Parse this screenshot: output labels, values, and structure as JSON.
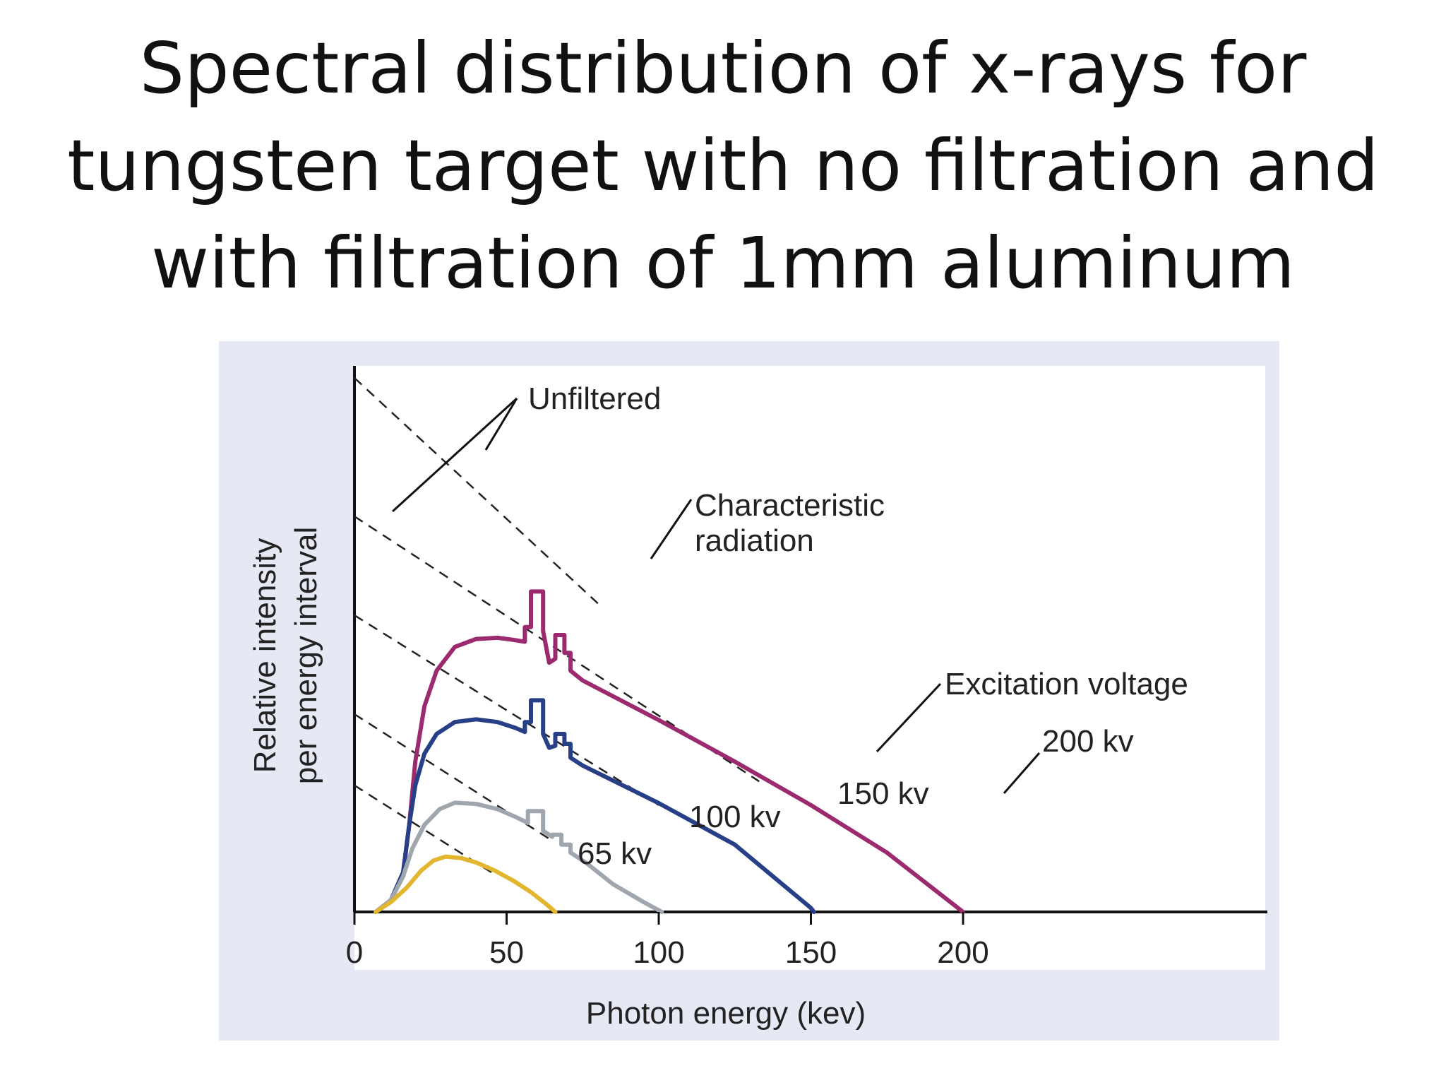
{
  "title_lines": [
    "Spectral distribution of x-rays for",
    "tungsten target with no filtration and",
    "with filtration of 1mm aluminum"
  ],
  "chart_data": {
    "type": "line",
    "title": "",
    "xlabel": "Photon energy (kev)",
    "ylabel_lines": [
      "Relative intensity",
      "per energy interval"
    ],
    "xlim": [
      0,
      225
    ],
    "ylim": [
      0,
      100
    ],
    "x_ticks": [
      0,
      50,
      100,
      150,
      200
    ],
    "grid": false,
    "legend": "none",
    "series": [
      {
        "name": "200 kv",
        "color": "#9b2a6e",
        "points": [
          [
            7,
            0
          ],
          [
            12,
            3
          ],
          [
            16,
            10
          ],
          [
            18,
            22
          ],
          [
            20,
            38
          ],
          [
            23,
            52
          ],
          [
            27,
            61
          ],
          [
            33,
            67
          ],
          [
            40,
            69
          ],
          [
            47,
            69.3
          ],
          [
            52,
            68.8
          ],
          [
            56,
            68.3
          ],
          [
            56,
            72
          ],
          [
            58,
            72
          ],
          [
            58,
            81
          ],
          [
            62,
            81
          ],
          [
            62,
            71
          ],
          [
            64,
            63
          ],
          [
            66,
            64
          ],
          [
            66,
            70
          ],
          [
            69,
            70
          ],
          [
            69,
            65.5
          ],
          [
            71,
            65.5
          ],
          [
            71,
            61
          ],
          [
            75,
            58.5
          ],
          [
            100,
            48.5
          ],
          [
            125,
            38
          ],
          [
            150,
            27
          ],
          [
            175,
            15
          ],
          [
            200,
            0
          ]
        ]
      },
      {
        "name": "150 kv",
        "color": "#263f86",
        "points": [
          [
            7,
            0
          ],
          [
            12,
            3
          ],
          [
            16,
            10
          ],
          [
            18,
            22
          ],
          [
            20,
            32
          ],
          [
            23,
            40
          ],
          [
            27,
            45
          ],
          [
            33,
            48
          ],
          [
            40,
            48.7
          ],
          [
            47,
            48
          ],
          [
            53,
            46.5
          ],
          [
            56,
            45.5
          ],
          [
            56,
            48
          ],
          [
            58,
            48
          ],
          [
            58,
            53.5
          ],
          [
            62,
            53.5
          ],
          [
            62,
            45
          ],
          [
            64,
            41.5
          ],
          [
            66,
            42
          ],
          [
            66,
            45
          ],
          [
            69,
            45
          ],
          [
            69,
            42.5
          ],
          [
            71,
            42.5
          ],
          [
            71,
            39
          ],
          [
            75,
            37
          ],
          [
            100,
            27.5
          ],
          [
            125,
            17
          ],
          [
            150,
            1
          ],
          [
            151,
            0
          ]
        ]
      },
      {
        "name": "100 kv",
        "color": "#a0a6ae",
        "points": [
          [
            7,
            0
          ],
          [
            12,
            3
          ],
          [
            16,
            9
          ],
          [
            19,
            16
          ],
          [
            23,
            22
          ],
          [
            28,
            26
          ],
          [
            33,
            27.6
          ],
          [
            40,
            27.3
          ],
          [
            47,
            26
          ],
          [
            53,
            24
          ],
          [
            57,
            22.5
          ],
          [
            57,
            25.5
          ],
          [
            62,
            25.5
          ],
          [
            62,
            20.5
          ],
          [
            65,
            19
          ],
          [
            65,
            19.5
          ],
          [
            68,
            19.5
          ],
          [
            68,
            17
          ],
          [
            71,
            17
          ],
          [
            71,
            15
          ],
          [
            76,
            12.5
          ],
          [
            85,
            7
          ],
          [
            95,
            2.5
          ],
          [
            101,
            0
          ]
        ]
      },
      {
        "name": "65 kv",
        "color": "#e2b62e",
        "points": [
          [
            7,
            0
          ],
          [
            12,
            2.5
          ],
          [
            17,
            6
          ],
          [
            22,
            10.5
          ],
          [
            26,
            13
          ],
          [
            30,
            14
          ],
          [
            35,
            13.6
          ],
          [
            40,
            12.5
          ],
          [
            46,
            10.5
          ],
          [
            52,
            8
          ],
          [
            58,
            5
          ],
          [
            63,
            2
          ],
          [
            66,
            0
          ]
        ]
      }
    ],
    "unfiltered_lines": [
      {
        "name": "Unfiltered 200 kv",
        "from": [
          0,
          100
        ],
        "to": [
          133,
          33
        ]
      },
      {
        "name": "Unfiltered 150 kv",
        "from": [
          0,
          75
        ],
        "to": [
          100,
          27
        ]
      },
      {
        "name": "Unfiltered 100 kv",
        "from": [
          0,
          50
        ],
        "to": [
          65,
          18
        ]
      },
      {
        "name": "Unfiltered 65 kv",
        "from": [
          0,
          32
        ],
        "to": [
          45,
          10
        ]
      }
    ],
    "annotations": [
      {
        "text": "Unfiltered"
      },
      {
        "text": "Characteristic",
        "text2": "radiation"
      },
      {
        "text": "Excitation voltage"
      },
      {
        "text": "200 kv"
      },
      {
        "text": "150 kv"
      },
      {
        "text": "100 kv"
      },
      {
        "text": "65 kv"
      }
    ]
  }
}
